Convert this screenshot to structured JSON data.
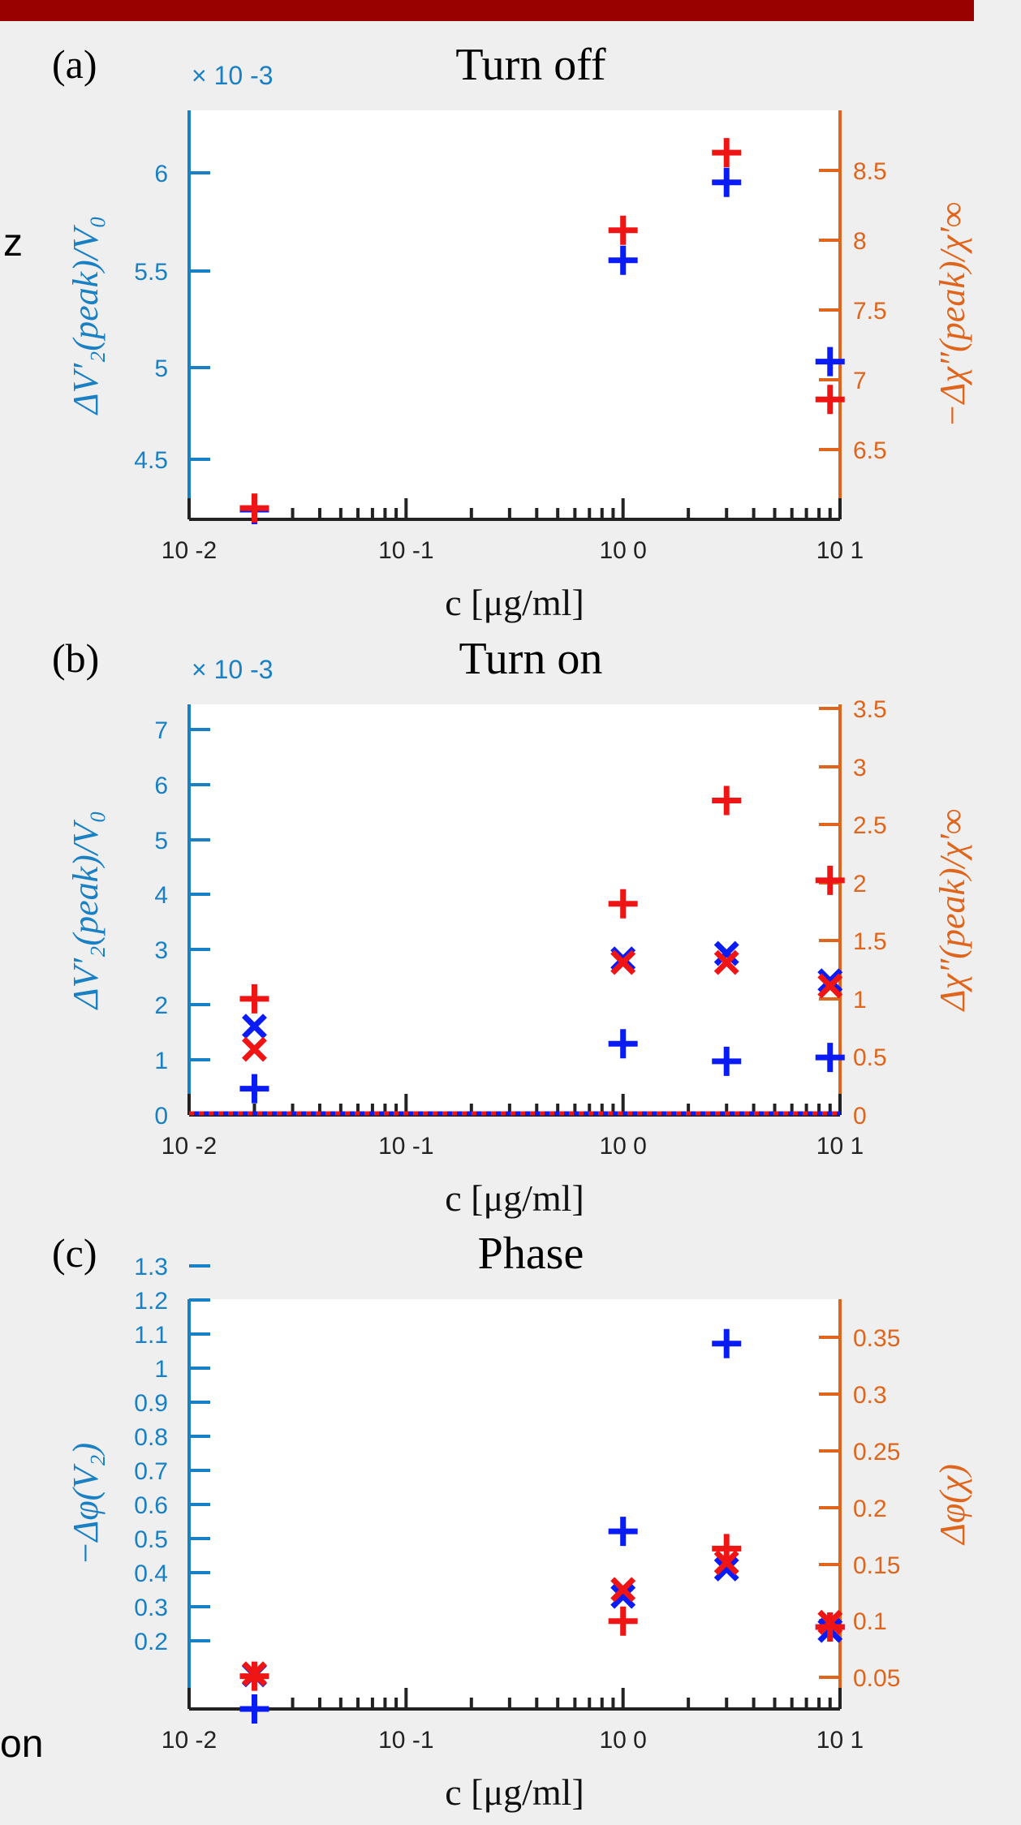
{
  "fragments": {
    "frag1": "z",
    "frag2": "on"
  },
  "colors": {
    "left_axis": "#1a80c4",
    "right_axis": "#e0651c",
    "blue": "#0a1cf5",
    "red": "#f01515",
    "plot_bg": "#ffffff",
    "bar": "#990000"
  },
  "chart_data": [
    {
      "type": "scatter",
      "panel_label": "(a)",
      "title": "Turn off",
      "xlabel": "c [μg/ml]",
      "xscale": "log",
      "xlim": [
        0.01,
        10
      ],
      "x_ticklabels": [
        "10 -2",
        "10 -1",
        "10 0",
        "10 1"
      ],
      "left_axis": {
        "label": "ΔV′₂(peak)/V₀",
        "exponent_label": "× 10 -3",
        "ylim": [
          4.3,
          6.4
        ],
        "ticks": [
          "4.5",
          "5",
          "5.5",
          "6"
        ]
      },
      "right_axis": {
        "label": "−Δχ″(peak)/χ′∞",
        "ylim": [
          6.1,
          9.0
        ],
        "ticks": [
          "6.5",
          "7",
          "7.5",
          "8",
          "8.5"
        ]
      },
      "series": [
        {
          "marker": "plus",
          "color": "blue",
          "axis": "left",
          "x": [
            0.02,
            1,
            3,
            9
          ],
          "y": [
            4.35,
            5.63,
            6.03,
            5.11
          ]
        },
        {
          "marker": "plus",
          "color": "red",
          "axis": "right",
          "x": [
            0.02,
            1,
            3,
            9
          ],
          "y": [
            6.18,
            8.15,
            8.7,
            6.95
          ]
        }
      ]
    },
    {
      "type": "scatter",
      "panel_label": "(b)",
      "title": "Turn on",
      "xlabel": "c [μg/ml]",
      "xscale": "log",
      "xlim": [
        0.01,
        10
      ],
      "x_ticklabels": [
        "10 -2",
        "10 -1",
        "10 0",
        "10 1"
      ],
      "left_axis": {
        "label": "ΔV′₂(peak)/V₀",
        "exponent_label": "× 10 -3",
        "ylim": [
          0,
          7.5
        ],
        "ticks": [
          "0",
          "1",
          "2",
          "3",
          "4",
          "5",
          "6",
          "7"
        ]
      },
      "right_axis": {
        "label": "Δχ″(peak)/χ′∞",
        "ylim": [
          0,
          3.5
        ],
        "ticks": [
          "0",
          "0.5",
          "1",
          "1.5",
          "2",
          "2.5",
          "3",
          "3.5"
        ]
      },
      "series": [
        {
          "marker": "plus",
          "color": "blue",
          "axis": "left",
          "x": [
            0.02,
            1,
            3,
            9
          ],
          "y": [
            0.48,
            1.3,
            0.98,
            1.05
          ]
        },
        {
          "marker": "x",
          "color": "blue",
          "axis": "left",
          "x": [
            0.02,
            1,
            3,
            9
          ],
          "y": [
            1.62,
            2.85,
            2.95,
            2.45
          ]
        },
        {
          "marker": "plus",
          "color": "red",
          "axis": "right",
          "x": [
            0.02,
            1,
            3,
            9
          ],
          "y": [
            0.99,
            1.8,
            2.68,
            2.0
          ]
        },
        {
          "marker": "x",
          "color": "red",
          "axis": "right",
          "x": [
            0.02,
            1,
            3,
            9
          ],
          "y": [
            0.56,
            1.3,
            1.3,
            1.1
          ]
        }
      ]
    },
    {
      "type": "scatter",
      "panel_label": "(c)",
      "title": "Phase",
      "xlabel": "c [μg/ml]",
      "xscale": "log",
      "xlim": [
        0.01,
        10
      ],
      "x_ticklabels": [
        "10 -2",
        "10 -1",
        "10 0",
        "10 1"
      ],
      "left_axis": {
        "label": "−Δφ(V₂)",
        "ylim": [
          0.1,
          1.3
        ],
        "ticks": [
          "0.2",
          "0.3",
          "0.4",
          "0.5",
          "0.6",
          "0.7",
          "0.8",
          "0.9",
          "1",
          "1.1",
          "1.2",
          "1.3"
        ]
      },
      "right_axis": {
        "label": "Δφ(χ)",
        "ylim": [
          0.03,
          0.38
        ],
        "ticks": [
          "0.05",
          "0.1",
          "0.15",
          "0.2",
          "0.25",
          "0.3",
          "0.35"
        ]
      },
      "series": [
        {
          "marker": "plus",
          "color": "blue",
          "axis": "left",
          "x": [
            0.02,
            1,
            3,
            9
          ],
          "y": [
            0.1,
            0.62,
            1.17,
            0.34
          ]
        },
        {
          "marker": "x",
          "color": "blue",
          "axis": "left",
          "x": [
            0.02,
            1,
            3,
            9
          ],
          "y": [
            0.2,
            0.43,
            0.51,
            0.33
          ]
        },
        {
          "marker": "plus",
          "color": "red",
          "axis": "right",
          "x": [
            0.02,
            1,
            3,
            9
          ],
          "y": [
            0.058,
            0.105,
            0.167,
            0.1
          ]
        },
        {
          "marker": "x",
          "color": "red",
          "axis": "right",
          "x": [
            0.02,
            1,
            3,
            9
          ],
          "y": [
            0.06,
            0.132,
            0.155,
            0.104
          ]
        }
      ]
    }
  ]
}
